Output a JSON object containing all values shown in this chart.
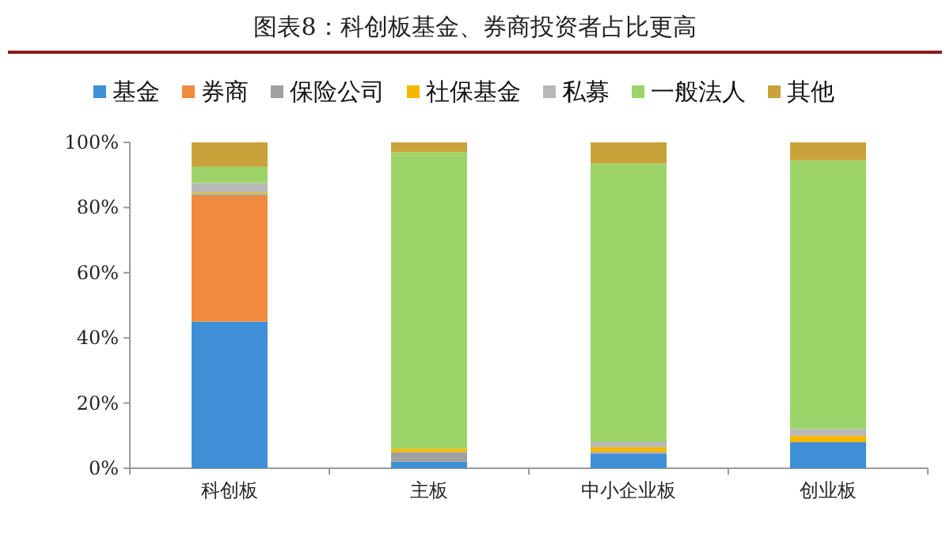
{
  "chart_data": {
    "type": "bar",
    "title": "图表8：科创板基金、券商投资者占比更高",
    "stacked": true,
    "legend": "top",
    "categories": [
      "科创板",
      "主板",
      "中小企业板",
      "创业板"
    ],
    "series": [
      {
        "name": "基金",
        "color": "#3e8fd6",
        "values": [
          45,
          2,
          4.5,
          8
        ]
      },
      {
        "name": "券商",
        "color": "#f08a3e",
        "values": [
          38.5,
          0,
          0,
          0
        ]
      },
      {
        "name": "保险公司",
        "color": "#a0a0a0",
        "values": [
          0.5,
          3,
          0.5,
          0
        ]
      },
      {
        "name": "社保基金",
        "color": "#f5b800",
        "values": [
          0.5,
          1,
          1.5,
          2
        ]
      },
      {
        "name": "私募",
        "color": "#b8b8b8",
        "values": [
          3,
          0,
          1.5,
          2
        ]
      },
      {
        "name": "一般法人",
        "color": "#9dd46a",
        "values": [
          5,
          91,
          85.5,
          82.5
        ]
      },
      {
        "name": "其他",
        "color": "#c9a33a",
        "values": [
          7.5,
          3,
          6.5,
          5.5
        ]
      }
    ],
    "ylim": [
      0,
      100
    ],
    "yticks": [
      {
        "value": 0,
        "label": "0%"
      },
      {
        "value": 20,
        "label": "20%"
      },
      {
        "value": 40,
        "label": "40%"
      },
      {
        "value": 60,
        "label": "60%"
      },
      {
        "value": 80,
        "label": "80%"
      },
      {
        "value": 100,
        "label": "100%"
      }
    ]
  }
}
